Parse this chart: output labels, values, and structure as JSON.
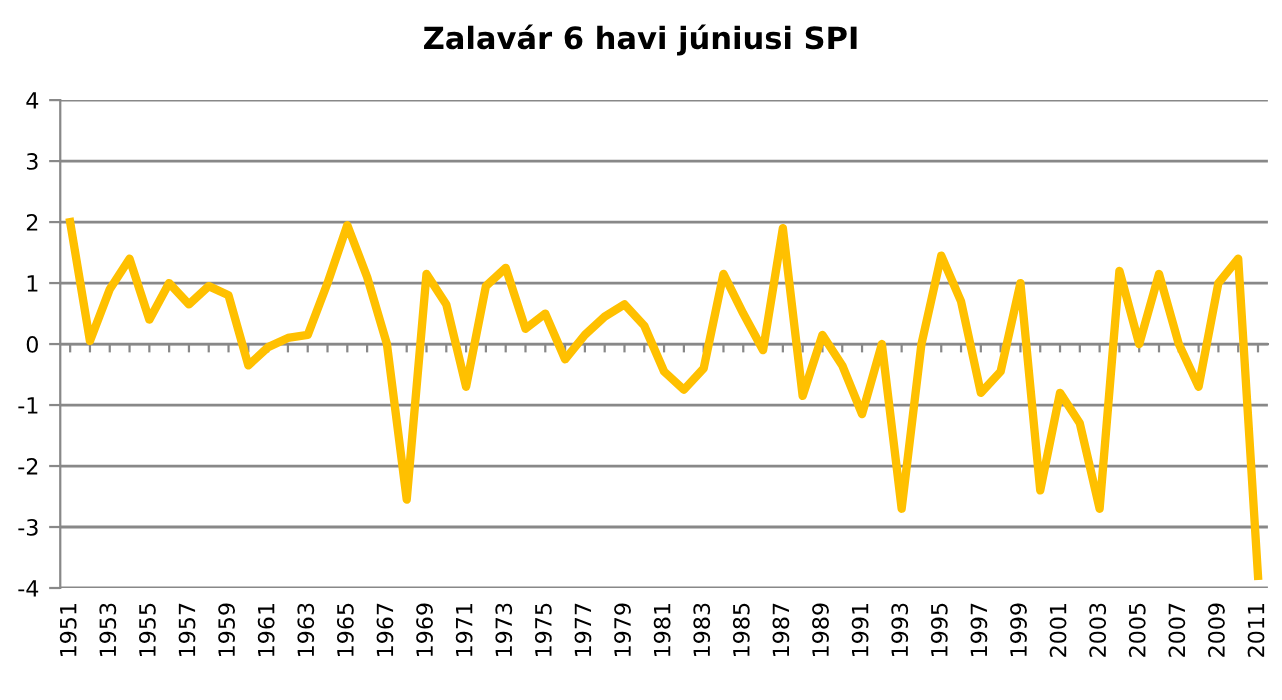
{
  "chart_data": {
    "type": "line",
    "title": "Zalavár 6 havi júniusi SPI",
    "categories": [
      "1951",
      null,
      "1953",
      null,
      "1955",
      null,
      "1957",
      null,
      "1959",
      null,
      "1961",
      null,
      "1963",
      null,
      "1965",
      null,
      "1967",
      null,
      "1969",
      null,
      "1971",
      null,
      "1973",
      null,
      "1975",
      null,
      "1977",
      null,
      "1979",
      null,
      "1981",
      null,
      "1983",
      null,
      "1985",
      null,
      "1987",
      null,
      "1989",
      null,
      "1991",
      null,
      "1993",
      null,
      "1995",
      null,
      "1997",
      null,
      "1999",
      null,
      "2001",
      null,
      "2003",
      null,
      "2005",
      null,
      "2007",
      null,
      "2009",
      null,
      "2011"
    ],
    "series": [
      {
        "color": "#ffc000",
        "values": [
          2.0,
          0.05,
          0.9,
          1.4,
          0.4,
          1.0,
          0.65,
          0.95,
          0.8,
          -0.35,
          -0.05,
          0.1,
          0.15,
          1.0,
          1.95,
          1.1,
          0.0,
          -2.55,
          1.15,
          0.65,
          -0.7,
          0.95,
          1.25,
          0.25,
          0.5,
          -0.25,
          0.15,
          0.45,
          0.65,
          0.3,
          -0.45,
          -0.75,
          -0.4,
          1.15,
          0.5,
          -0.1,
          1.9,
          -0.85,
          0.15,
          -0.35,
          -1.15,
          0.0,
          -2.7,
          0.0,
          1.45,
          0.7,
          -0.8,
          -0.45,
          1.0,
          -2.4,
          -0.8,
          -1.3,
          -2.7,
          1.2,
          0.0,
          1.15,
          0.0,
          -0.7,
          1.0,
          1.4,
          -3.8
        ]
      }
    ],
    "ylim": [
      -4,
      4
    ],
    "yticks": [
      -4,
      -3,
      -2,
      -1,
      0,
      1,
      2,
      3,
      4
    ],
    "grid": "y",
    "legend": false,
    "marker": "none",
    "line_style": "solid"
  }
}
